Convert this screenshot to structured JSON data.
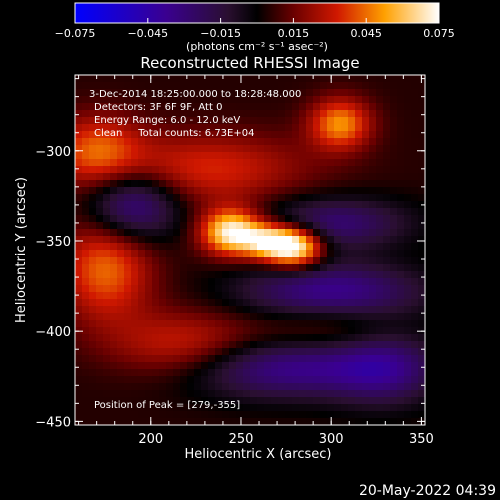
{
  "chart_data": {
    "type": "heatmap",
    "title": "Reconstructed RHESSI Image",
    "xlabel": "Heliocentric X (arcsec)",
    "ylabel": "Heliocentric Y (arcsec)",
    "xlim": [
      158,
      352
    ],
    "ylim": [
      -452,
      -258
    ],
    "xticks": [
      200,
      250,
      300,
      350
    ],
    "yticks": [
      -300,
      -350,
      -400,
      -450
    ],
    "colorbar": {
      "ticks": [
        -0.075,
        -0.045,
        -0.015,
        0.015,
        0.045,
        0.075
      ],
      "tick_labels": [
        "−0.075",
        "−0.045",
        "−0.015",
        "0.015",
        "0.045",
        "0.075"
      ],
      "range": [
        -0.075,
        0.075
      ],
      "unit_label": "(photons cm⁻² s⁻¹ asec⁻²)"
    },
    "annotations": [
      "3-Dec-2014 18:25:00.000 to 18:28:48.000",
      "Detectors: 3F 6F 9F, Att 0",
      "Energy Range: 6.0 - 12.0 keV",
      "Clean     Total counts: 6.73E+04"
    ],
    "peak_label": "Position of Peak = [279,-355]",
    "peak": {
      "x": 279,
      "y": -355
    },
    "components": [
      {
        "x": 245,
        "y": -345,
        "amp": 0.072,
        "sx": 12,
        "sy": 9
      },
      {
        "x": 280,
        "y": -353,
        "amp": 0.075,
        "sx": 11,
        "sy": 8
      },
      {
        "x": 265,
        "y": -350,
        "amp": 0.05,
        "sx": 10,
        "sy": 7
      },
      {
        "x": 305,
        "y": -285,
        "amp": 0.045,
        "sx": 12,
        "sy": 10
      },
      {
        "x": 230,
        "y": -310,
        "amp": 0.03,
        "sx": 40,
        "sy": 14
      },
      {
        "x": 170,
        "y": -300,
        "amp": 0.035,
        "sx": 18,
        "sy": 14
      },
      {
        "x": 175,
        "y": -365,
        "amp": 0.04,
        "sx": 18,
        "sy": 20
      },
      {
        "x": 300,
        "y": -395,
        "amp": 0.025,
        "sx": 30,
        "sy": 12
      },
      {
        "x": 220,
        "y": -410,
        "amp": 0.035,
        "sx": 30,
        "sy": 14
      },
      {
        "x": 190,
        "y": -330,
        "amp": -0.045,
        "sx": 18,
        "sy": 14
      },
      {
        "x": 300,
        "y": -340,
        "amp": -0.035,
        "sx": 30,
        "sy": 10
      },
      {
        "x": 300,
        "y": -380,
        "amp": -0.05,
        "sx": 35,
        "sy": 12
      },
      {
        "x": 270,
        "y": -420,
        "amp": -0.045,
        "sx": 45,
        "sy": 12
      },
      {
        "x": 330,
        "y": -420,
        "amp": -0.03,
        "sx": 20,
        "sy": 15
      }
    ],
    "background": 0.005
  },
  "footer_date": "20-May-2022 04:39"
}
